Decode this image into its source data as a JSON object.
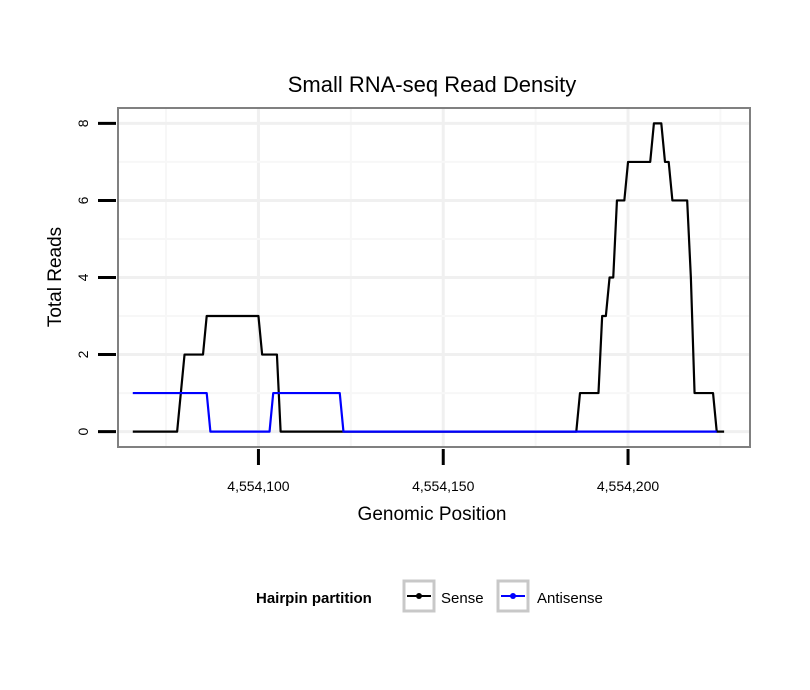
{
  "chart_data": {
    "type": "line",
    "title": "Small RNA-seq Read Density",
    "xlabel": "Genomic Position",
    "ylabel": "Total Reads",
    "xlim": [
      4554062,
      4554233
    ],
    "ylim": [
      -0.4,
      8.4
    ],
    "x_ticks": [
      4554100,
      4554150,
      4554200
    ],
    "x_tick_labels": [
      "4,554,100",
      "4,554,150",
      "4,554,200"
    ],
    "y_ticks": [
      0,
      2,
      4,
      6,
      8
    ],
    "y_tick_labels": [
      "0",
      "2",
      "4",
      "6",
      "8"
    ],
    "grid": true,
    "legend": {
      "title": "Hairpin partition",
      "placement": "bottom",
      "entries": [
        "Sense",
        "Antisense"
      ]
    },
    "series": [
      {
        "name": "Sense",
        "color": "#000000",
        "points": [
          [
            4554066,
            0
          ],
          [
            4554078,
            0
          ],
          [
            4554080,
            2
          ],
          [
            4554085,
            2
          ],
          [
            4554086,
            3
          ],
          [
            4554100,
            3
          ],
          [
            4554101,
            2
          ],
          [
            4554105,
            2
          ],
          [
            4554106,
            0
          ],
          [
            4554186,
            0
          ],
          [
            4554187,
            1
          ],
          [
            4554192,
            1
          ],
          [
            4554193,
            3
          ],
          [
            4554194,
            3
          ],
          [
            4554195,
            4
          ],
          [
            4554196,
            4
          ],
          [
            4554197,
            6
          ],
          [
            4554199,
            6
          ],
          [
            4554200,
            7
          ],
          [
            4554206,
            7
          ],
          [
            4554207,
            8
          ],
          [
            4554209,
            8
          ],
          [
            4554210,
            7
          ],
          [
            4554211,
            7
          ],
          [
            4554212,
            6
          ],
          [
            4554216,
            6
          ],
          [
            4554217,
            4
          ],
          [
            4554218,
            1
          ],
          [
            4554223,
            1
          ],
          [
            4554224,
            0
          ],
          [
            4554226,
            0
          ]
        ]
      },
      {
        "name": "Antisense",
        "color": "#0000ff",
        "points": [
          [
            4554066,
            1
          ],
          [
            4554086,
            1
          ],
          [
            4554087,
            0
          ],
          [
            4554103,
            0
          ],
          [
            4554104,
            1
          ],
          [
            4554122,
            1
          ],
          [
            4554123,
            0
          ],
          [
            4554224,
            0
          ]
        ]
      }
    ]
  }
}
